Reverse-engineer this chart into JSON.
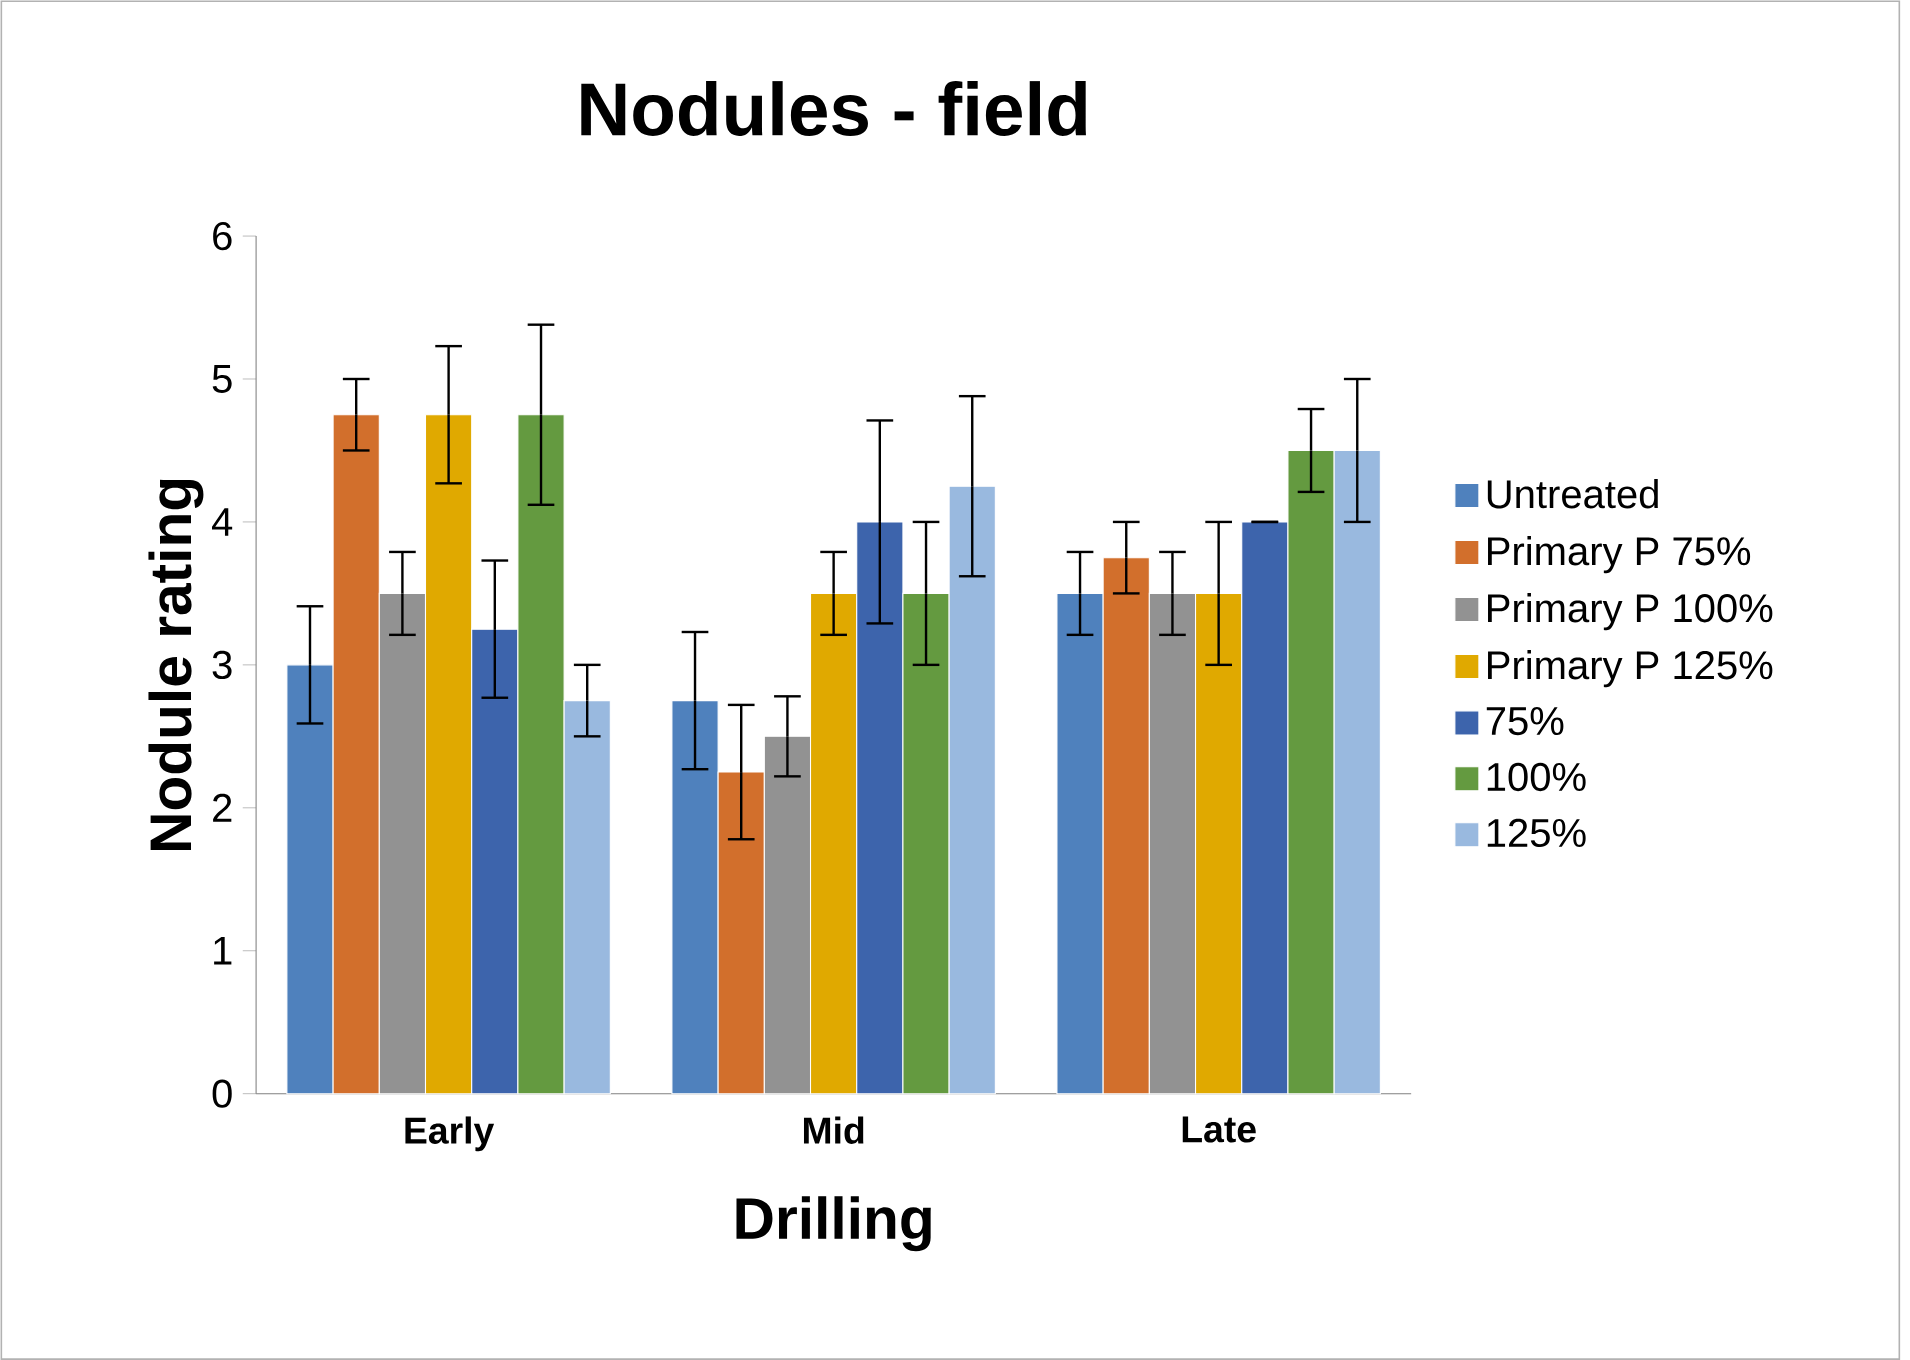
{
  "chart_data": {
    "type": "bar",
    "title": "Nodules - field",
    "xlabel": "Drilling",
    "ylabel": "Nodule rating",
    "categories": [
      "Early",
      "Mid",
      "Late"
    ],
    "ylim": [
      0,
      6
    ],
    "yticks": [
      0,
      1,
      2,
      3,
      4,
      5,
      6
    ],
    "grid": false,
    "legend": "right",
    "series": [
      {
        "name": "Untreated",
        "color": "#4f81bd",
        "values": [
          3,
          2.75,
          3.5
        ],
        "errors": [
          0.41,
          0.48,
          0.29
        ]
      },
      {
        "name": "Primary P 75%",
        "color": "#d26f2c",
        "values": [
          4.75,
          2.25,
          3.75
        ],
        "errors": [
          0.25,
          0.47,
          0.25
        ]
      },
      {
        "name": "Primary P 100%",
        "color": "#929292",
        "values": [
          3.5,
          2.5,
          3.5
        ],
        "errors": [
          0.29,
          0.28,
          0.29
        ]
      },
      {
        "name": "Primary P 125%",
        "color": "#e0a900",
        "values": [
          4.75,
          3.5,
          3.5
        ],
        "errors": [
          0.48,
          0.29,
          0.5
        ]
      },
      {
        "name": "75%",
        "color": "#3d64ac",
        "values": [
          3.25,
          4,
          4
        ],
        "errors": [
          0.48,
          0.71,
          0
        ]
      },
      {
        "name": "100%",
        "color": "#649a40",
        "values": [
          4.75,
          3.5,
          4.5
        ],
        "errors": [
          0.63,
          0.5,
          0.29
        ]
      },
      {
        "name": "125%",
        "color": "#99b9df",
        "values": [
          2.75,
          4.25,
          4.5
        ],
        "errors": [
          0.25,
          0.63,
          0.5
        ]
      }
    ]
  }
}
